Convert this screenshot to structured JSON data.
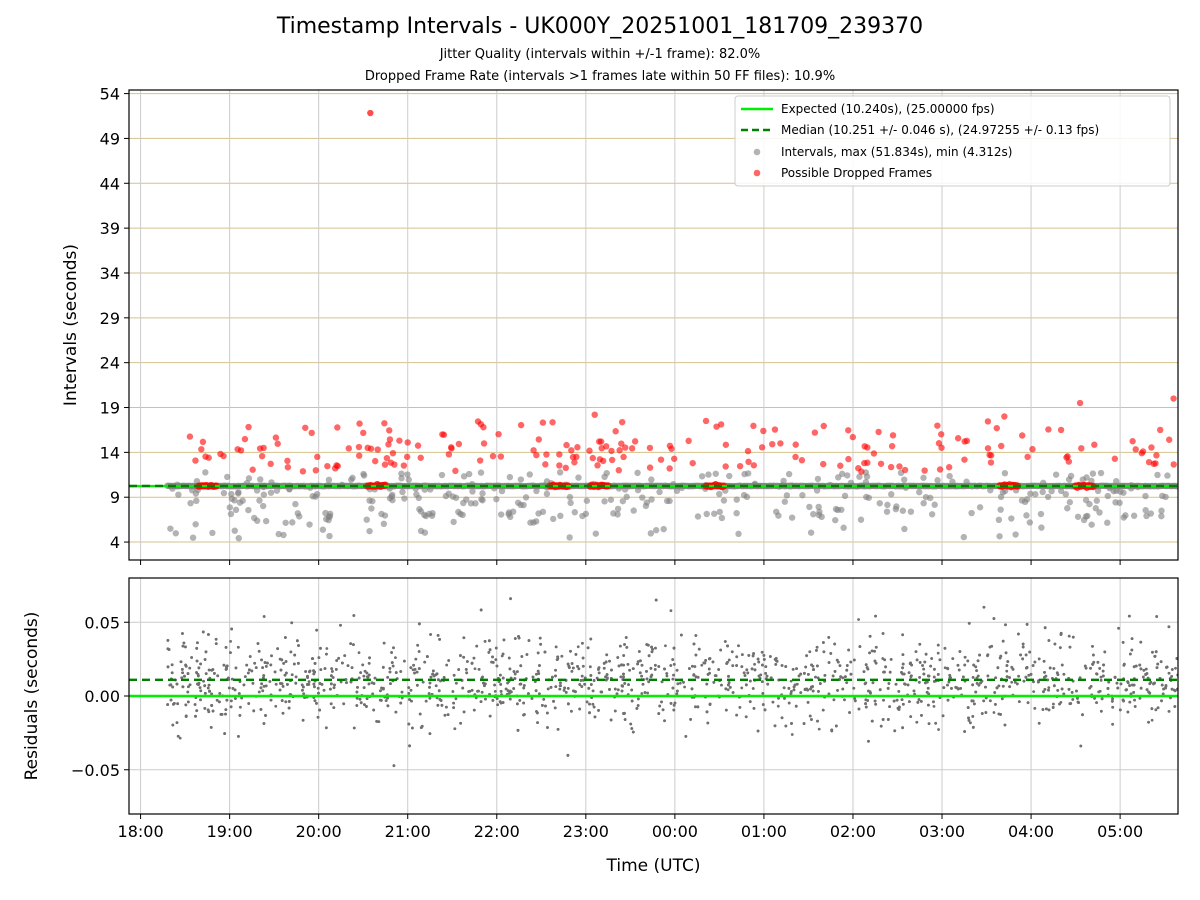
{
  "chart_data": {
    "title": "Timestamp Intervals - UK000Y_20251001_181709_239370",
    "subtitle_1": "Jitter Quality (intervals within +/-1 frame): 82.0%",
    "subtitle_2": "Dropped Frame Rate (intervals >1 frames late within 50 FF files): 10.9%",
    "xlabel": "Time (UTC)",
    "x_tick_labels": [
      "18:00",
      "19:00",
      "20:00",
      "21:00",
      "22:00",
      "23:00",
      "00:00",
      "01:00",
      "02:00",
      "03:00",
      "04:00",
      "05:00"
    ],
    "x_time_range_hours_since_18": [
      -0.13,
      11.65
    ],
    "x_data_start_hours_since_18": 0.3,
    "top_panel": {
      "type": "scatter",
      "ylabel": "Intervals (seconds)",
      "ylim": [
        2,
        54.4
      ],
      "yticks": [
        4,
        9,
        14,
        19,
        24,
        29,
        34,
        39,
        44,
        49,
        54
      ],
      "expected_interval": 10.24,
      "median_interval": 10.251,
      "max_interval": 51.834,
      "min_interval": 4.312,
      "outlier_max_point": {
        "t_hours_since_18": 2.58,
        "value": 51.834
      },
      "legend": [
        {
          "label": "Expected (10.240s), (25.00000 fps)",
          "style": "solid-line",
          "color": "#00ee00"
        },
        {
          "label": "Median (10.251 +/- 0.046 s), (24.97255 +/- 0.13 fps)",
          "style": "dashed-line",
          "color": "#008000"
        },
        {
          "label": "Intervals, max (51.834s), min (4.312s)",
          "style": "marker",
          "color": "#808080"
        },
        {
          "label": "Possible Dropped Frames",
          "style": "marker",
          "color": "#ff0000"
        }
      ],
      "legend_location": "top-right",
      "dropped_frame_clusters_hours_since_18": [
        0.75,
        2.65,
        4.7,
        5.15,
        6.45,
        9.75,
        10.6
      ]
    },
    "bottom_panel": {
      "type": "scatter",
      "ylabel": "Residuals (seconds)",
      "ylim": [
        -0.08,
        0.08
      ],
      "yticks": [
        0.05,
        0.0,
        -0.05
      ],
      "ytick_labels": [
        "0.05",
        "0.00",
        "−0.05"
      ],
      "expected_residual": 0.0,
      "median_residual": 0.011
    },
    "colors": {
      "expected": "#00ee00",
      "median": "#008000",
      "intervals": "#808080",
      "dropped": "#ff0000",
      "top_grid": "#d4c28a",
      "grid": "#cccccc"
    }
  }
}
